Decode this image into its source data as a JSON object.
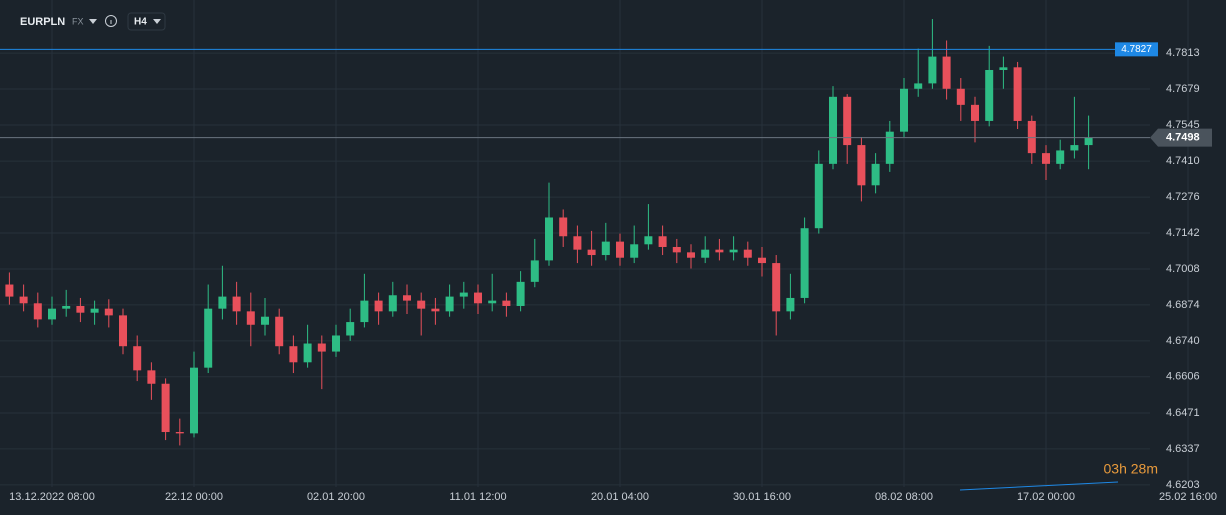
{
  "chart_data": {
    "type": "candlestick",
    "symbol": "EURPLN",
    "market": "FX",
    "timeframe": "H4",
    "countdown": "03h 28m",
    "alert_level": 4.7827,
    "alert_color": "#1e88e5",
    "up_color": "#2ebd85",
    "down_color": "#e8505b",
    "grid": true,
    "ylim": [
      4.6195,
      4.8011
    ],
    "yticks": [
      4.6203,
      4.6337,
      4.6471,
      4.6606,
      {
        "value": 4.674,
        "label": "4.6740"
      },
      4.6874,
      4.7008,
      4.7142,
      4.7276,
      {
        "value": 4.741,
        "label": "4.7410"
      },
      4.7545,
      4.7679,
      4.7813
    ],
    "categories": [
      null,
      null,
      null,
      "13.12.2022 08:00",
      null,
      null,
      null,
      null,
      null,
      null,
      null,
      null,
      null,
      "22.12 00:00",
      null,
      null,
      null,
      null,
      null,
      null,
      null,
      null,
      null,
      "02.01 20:00",
      null,
      null,
      null,
      null,
      null,
      null,
      null,
      null,
      null,
      "11.01 12:00",
      null,
      null,
      null,
      null,
      null,
      null,
      null,
      null,
      null,
      "20.01 04:00",
      null,
      null,
      null,
      null,
      null,
      null,
      null,
      null,
      null,
      "30.01 16:00",
      null,
      null,
      null,
      null,
      null,
      null,
      null,
      null,
      null,
      "08.02 08:00",
      null,
      null,
      null,
      null,
      null,
      null,
      null,
      null,
      null,
      "17.02 00:00",
      null,
      null,
      null,
      null,
      null,
      null,
      null,
      null,
      null,
      "25.02 16:00"
    ],
    "open": [
      4.695,
      4.6905,
      4.688,
      4.682,
      4.686,
      4.687,
      4.6845,
      4.686,
      4.6835,
      4.672,
      4.663,
      4.658,
      4.64,
      4.6395,
      4.664,
      4.686,
      4.6905,
      4.685,
      4.68,
      4.683,
      4.672,
      4.666,
      4.673,
      4.67,
      4.676,
      4.681,
      4.689,
      4.685,
      4.691,
      4.689,
      4.686,
      4.685,
      4.6905,
      4.692,
      4.688,
      4.689,
      4.687,
      4.696,
      4.704,
      4.72,
      4.713,
      4.708,
      4.706,
      4.711,
      4.705,
      4.71,
      4.713,
      4.709,
      4.707,
      4.705,
      4.708,
      4.707,
      4.708,
      4.705,
      4.703,
      4.685,
      4.69,
      4.716,
      4.74,
      4.765,
      4.747,
      4.732,
      4.74,
      4.752,
      4.768,
      4.77,
      4.78,
      4.768,
      4.762,
      4.756,
      4.775,
      4.776,
      4.756,
      4.744,
      4.74,
      4.745,
      4.747,
      null,
      null,
      null,
      null,
      null,
      null,
      null
    ],
    "high": [
      4.6995,
      4.695,
      4.692,
      4.6905,
      4.693,
      4.69,
      4.689,
      4.6895,
      4.686,
      4.676,
      4.666,
      4.66,
      4.645,
      4.67,
      4.695,
      4.702,
      4.696,
      4.692,
      4.69,
      4.686,
      4.676,
      4.68,
      4.676,
      4.68,
      4.686,
      4.699,
      4.692,
      4.696,
      4.695,
      4.692,
      4.69,
      4.695,
      4.696,
      4.695,
      4.699,
      4.692,
      4.7,
      4.712,
      4.733,
      4.723,
      4.717,
      4.715,
      4.718,
      4.714,
      4.717,
      4.725,
      4.717,
      4.712,
      4.71,
      4.713,
      4.712,
      4.713,
      4.711,
      4.709,
      4.706,
      4.699,
      4.72,
      4.745,
      4.769,
      4.766,
      4.75,
      4.744,
      4.756,
      4.772,
      4.783,
      4.794,
      4.786,
      4.772,
      4.765,
      4.784,
      4.78,
      4.778,
      4.758,
      4.747,
      4.749,
      4.765,
      4.758,
      null,
      null,
      null,
      null,
      null,
      null,
      null
    ],
    "low": [
      4.6875,
      4.685,
      4.679,
      4.68,
      4.683,
      4.681,
      4.68,
      4.679,
      4.669,
      4.659,
      4.652,
      4.637,
      4.635,
      4.638,
      4.662,
      4.682,
      4.68,
      4.672,
      4.676,
      4.669,
      4.662,
      4.664,
      4.656,
      4.668,
      4.674,
      4.679,
      4.68,
      4.683,
      4.684,
      4.676,
      4.68,
      4.683,
      4.686,
      4.684,
      4.685,
      4.683,
      4.685,
      4.694,
      4.702,
      4.709,
      4.703,
      4.702,
      4.704,
      4.702,
      4.703,
      4.708,
      4.706,
      4.703,
      4.701,
      4.703,
      4.704,
      4.704,
      4.702,
      4.698,
      4.676,
      4.682,
      4.688,
      4.714,
      4.738,
      4.74,
      4.726,
      4.729,
      4.737,
      4.75,
      4.765,
      4.768,
      4.764,
      4.756,
      4.748,
      4.754,
      4.768,
      4.753,
      4.74,
      4.734,
      4.738,
      4.742,
      4.738,
      null,
      null,
      null,
      null,
      null,
      null,
      null
    ],
    "close": [
      4.6905,
      4.688,
      4.682,
      4.686,
      4.687,
      4.6845,
      4.686,
      4.6835,
      4.672,
      4.663,
      4.658,
      4.64,
      4.6395,
      4.664,
      4.686,
      4.6905,
      4.685,
      4.68,
      4.683,
      4.672,
      4.666,
      4.673,
      4.67,
      4.676,
      4.681,
      4.689,
      4.685,
      4.691,
      4.689,
      4.686,
      4.685,
      4.6905,
      4.692,
      4.688,
      4.689,
      4.687,
      4.696,
      4.704,
      4.72,
      4.713,
      4.708,
      4.706,
      4.711,
      4.705,
      4.71,
      4.713,
      4.709,
      4.707,
      4.705,
      4.708,
      4.707,
      4.708,
      4.705,
      4.703,
      4.685,
      4.69,
      4.716,
      4.74,
      4.765,
      4.747,
      4.732,
      4.74,
      4.752,
      4.768,
      4.77,
      4.78,
      4.768,
      4.762,
      4.756,
      4.775,
      4.776,
      4.756,
      4.744,
      4.74,
      4.745,
      4.747,
      4.7498,
      null,
      null,
      null,
      null,
      null,
      null,
      null
    ]
  }
}
